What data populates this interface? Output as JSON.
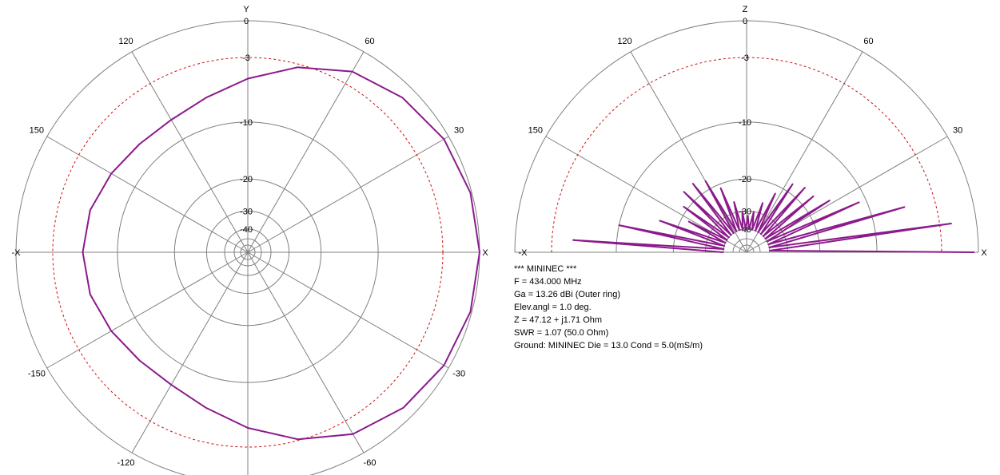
{
  "chart_data": [
    {
      "type": "polar",
      "thetalim": [
        -180,
        180
      ],
      "color": "#8b1a8b",
      "axis_labels": {
        "right": "X",
        "left": "-X",
        "top": "Y"
      },
      "rticks": [
        0,
        -3,
        -10,
        -20,
        -30,
        -40
      ],
      "dashed_ring": -3,
      "thetaticks": [
        30,
        60,
        120,
        150,
        -30,
        -60,
        -120,
        -150
      ],
      "angles": [
        0,
        15,
        30,
        45,
        60,
        75,
        90,
        105,
        120,
        135,
        150,
        165,
        180,
        195,
        210,
        225,
        240,
        255,
        270,
        285,
        300,
        315,
        330,
        345
      ],
      "values": [
        0,
        -0.1,
        -0.4,
        -1.0,
        -1.8,
        -3.3,
        -5.0,
        -6.4,
        -7.2,
        -7.2,
        -6.7,
        -6.1,
        -5.9,
        -6.1,
        -6.7,
        -7.2,
        -7.2,
        -6.3,
        -4.8,
        -3.1,
        -1.7,
        -0.9,
        -0.4,
        -0.1
      ]
    },
    {
      "type": "polar",
      "thetalim": [
        0,
        180
      ],
      "color": "#8b1a8b",
      "axis_labels": {
        "right": "X",
        "left": "-X",
        "top": "Z"
      },
      "rticks": [
        0,
        -3,
        -10,
        -20,
        -30,
        -40
      ],
      "dashed_ring": -3,
      "thetaticks": [
        30,
        60,
        120,
        150
      ],
      "angles": [
        0,
        4,
        8,
        12,
        16,
        20,
        24,
        28,
        32,
        36,
        40,
        44,
        48,
        52,
        56,
        60,
        64,
        68,
        72,
        76,
        80,
        84,
        88,
        92,
        96,
        100,
        104,
        108,
        112,
        116,
        120,
        124,
        128,
        132,
        136,
        140,
        144,
        148,
        152,
        156,
        160,
        164,
        168,
        172,
        176,
        180
      ],
      "values": [
        -0.3,
        -40,
        -2,
        -40,
        -6,
        -40,
        -11,
        -40,
        -15,
        -40,
        -17,
        -40,
        -17,
        -40,
        -18,
        -40,
        -22,
        -40,
        -26,
        -40,
        -30,
        -40,
        -32,
        -40,
        -30,
        -40,
        -26,
        -40,
        -21,
        -40,
        -18,
        -40,
        -17,
        -40,
        -17,
        -40,
        -19,
        -40,
        -22,
        -40,
        -16,
        -40,
        -10,
        -40,
        -5,
        -40
      ]
    }
  ],
  "info": [
    "*** MININEC ***",
    "F = 434.000 MHz",
    "Ga = 13.26 dBi (Outer ring)",
    "Elev.angl = 1.0 deg.",
    "Z = 47.12 + j1.71 Ohm",
    "SWR = 1.07 (50.0 Ohm)",
    "Ground: MININEC Die = 13.0  Cond = 5.0(mS/m)"
  ]
}
